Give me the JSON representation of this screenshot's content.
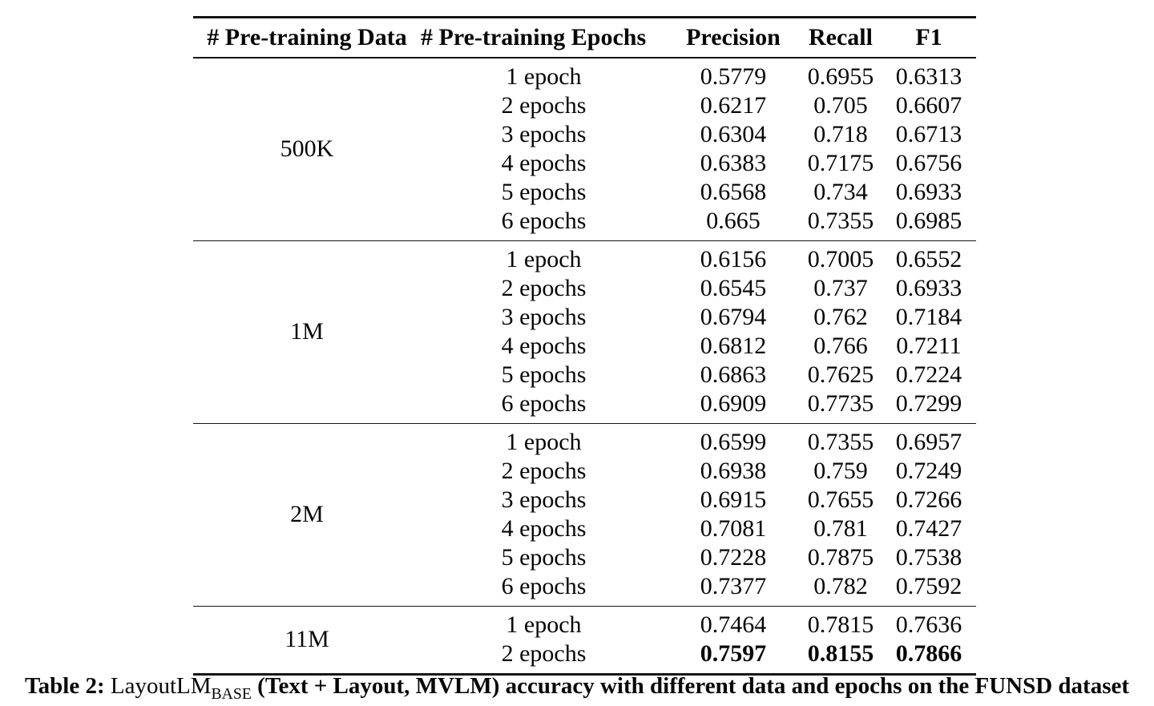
{
  "table": {
    "columns": [
      "# Pre-training Data",
      "# Pre-training Epochs",
      "Precision",
      "Recall",
      "F1"
    ],
    "groups": [
      {
        "data": "500K",
        "rows": [
          {
            "epochs": "1 epoch",
            "values": [
              "0.5779",
              "0.6955",
              "0.6313"
            ],
            "bold": false
          },
          {
            "epochs": "2 epochs",
            "values": [
              "0.6217",
              "0.705",
              "0.6607"
            ],
            "bold": false
          },
          {
            "epochs": "3 epochs",
            "values": [
              "0.6304",
              "0.718",
              "0.6713"
            ],
            "bold": false
          },
          {
            "epochs": "4 epochs",
            "values": [
              "0.6383",
              "0.7175",
              "0.6756"
            ],
            "bold": false
          },
          {
            "epochs": "5 epochs",
            "values": [
              "0.6568",
              "0.734",
              "0.6933"
            ],
            "bold": false
          },
          {
            "epochs": "6 epochs",
            "values": [
              "0.665",
              "0.7355",
              "0.6985"
            ],
            "bold": false
          }
        ]
      },
      {
        "data": "1M",
        "rows": [
          {
            "epochs": "1 epoch",
            "values": [
              "0.6156",
              "0.7005",
              "0.6552"
            ],
            "bold": false
          },
          {
            "epochs": "2 epochs",
            "values": [
              "0.6545",
              "0.737",
              "0.6933"
            ],
            "bold": false
          },
          {
            "epochs": "3 epochs",
            "values": [
              "0.6794",
              "0.762",
              "0.7184"
            ],
            "bold": false
          },
          {
            "epochs": "4 epochs",
            "values": [
              "0.6812",
              "0.766",
              "0.7211"
            ],
            "bold": false
          },
          {
            "epochs": "5 epochs",
            "values": [
              "0.6863",
              "0.7625",
              "0.7224"
            ],
            "bold": false
          },
          {
            "epochs": "6 epochs",
            "values": [
              "0.6909",
              "0.7735",
              "0.7299"
            ],
            "bold": false
          }
        ]
      },
      {
        "data": "2M",
        "rows": [
          {
            "epochs": "1 epoch",
            "values": [
              "0.6599",
              "0.7355",
              "0.6957"
            ],
            "bold": false
          },
          {
            "epochs": "2 epochs",
            "values": [
              "0.6938",
              "0.759",
              "0.7249"
            ],
            "bold": false
          },
          {
            "epochs": "3 epochs",
            "values": [
              "0.6915",
              "0.7655",
              "0.7266"
            ],
            "bold": false
          },
          {
            "epochs": "4 epochs",
            "values": [
              "0.7081",
              "0.781",
              "0.7427"
            ],
            "bold": false
          },
          {
            "epochs": "5 epochs",
            "values": [
              "0.7228",
              "0.7875",
              "0.7538"
            ],
            "bold": false
          },
          {
            "epochs": "6 epochs",
            "values": [
              "0.7377",
              "0.782",
              "0.7592"
            ],
            "bold": false
          }
        ]
      },
      {
        "data": "11M",
        "rows": [
          {
            "epochs": "1 epoch",
            "values": [
              "0.7464",
              "0.7815",
              "0.7636"
            ],
            "bold": false
          },
          {
            "epochs": "2 epochs",
            "values": [
              "0.7597",
              "0.8155",
              "0.7866"
            ],
            "bold": true
          }
        ]
      }
    ]
  },
  "caption": {
    "label": "Table 2: ",
    "model": "LayoutLM",
    "model_subscript": "BASE",
    "rest": " (Text + Layout, MVLM) accuracy with different data and epochs on the FUNSD dataset"
  }
}
